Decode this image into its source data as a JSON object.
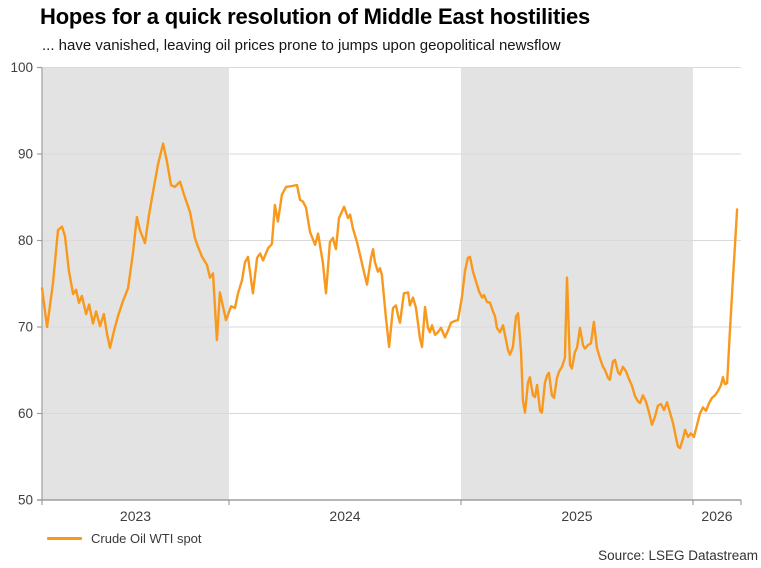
{
  "header": {
    "title": "Hopes for a quick resolution of Middle East hostilities",
    "subtitle": "... have vanished, leaving oil prices prone to jumps upon geopolitical newsflow"
  },
  "legend": {
    "label": "Crude Oil WTI spot"
  },
  "source": {
    "text": "Source: LSEG Datastream"
  },
  "colors": {
    "line": "#F8991D",
    "band": "#E3E3E3",
    "grid": "#D9D9D9",
    "axis": "#9E9E9E",
    "tick_text": "#3F3F3F"
  },
  "chart_data": {
    "type": "line",
    "title": "Hopes for a quick resolution of Middle East hostilities",
    "subtitle": "... have vanished, leaving oil prices prone to jumps upon geopolitical newsflow",
    "ylabel": "",
    "xlabel": "",
    "ylim": [
      50,
      100
    ],
    "y_ticks": [
      50,
      60,
      70,
      80,
      90,
      100
    ],
    "x_range": [
      2023.194,
      2026.207
    ],
    "grid": true,
    "legend_position": "bottom-left",
    "bands": [
      {
        "from": 2023.194,
        "to": 2024.0,
        "shaded": true,
        "label": "2023"
      },
      {
        "from": 2024.0,
        "to": 2025.0,
        "shaded": false,
        "label": "2024"
      },
      {
        "from": 2025.0,
        "to": 2026.0,
        "shaded": true,
        "label": "2025"
      },
      {
        "from": 2026.0,
        "to": 2026.207,
        "shaded": false,
        "label": "2026"
      }
    ],
    "series": [
      {
        "name": "Crude Oil WTI spot",
        "color": "#F8991D",
        "points": [
          [
            2023.194,
            74.5
          ],
          [
            2023.216,
            70.0
          ],
          [
            2023.241,
            75.0
          ],
          [
            2023.263,
            81.2
          ],
          [
            2023.28,
            81.6
          ],
          [
            2023.293,
            80.5
          ],
          [
            2023.31,
            76.5
          ],
          [
            2023.328,
            73.8
          ],
          [
            2023.341,
            74.3
          ],
          [
            2023.353,
            72.8
          ],
          [
            2023.366,
            73.6
          ],
          [
            2023.384,
            71.5
          ],
          [
            2023.397,
            72.6
          ],
          [
            2023.414,
            70.4
          ],
          [
            2023.427,
            71.8
          ],
          [
            2023.444,
            70.1
          ],
          [
            2023.461,
            71.5
          ],
          [
            2023.474,
            69.2
          ],
          [
            2023.487,
            67.6
          ],
          [
            2023.504,
            69.5
          ],
          [
            2023.522,
            71.3
          ],
          [
            2023.543,
            73.0
          ],
          [
            2023.565,
            74.5
          ],
          [
            2023.586,
            78.5
          ],
          [
            2023.603,
            82.7
          ],
          [
            2023.616,
            81.2
          ],
          [
            2023.638,
            79.7
          ],
          [
            2023.655,
            82.9
          ],
          [
            2023.677,
            86.3
          ],
          [
            2023.694,
            88.8
          ],
          [
            2023.716,
            91.2
          ],
          [
            2023.733,
            89.1
          ],
          [
            2023.75,
            86.4
          ],
          [
            2023.767,
            86.2
          ],
          [
            2023.789,
            86.8
          ],
          [
            2023.81,
            85.0
          ],
          [
            2023.832,
            83.3
          ],
          [
            2023.853,
            80.3
          ],
          [
            2023.866,
            79.3
          ],
          [
            2023.884,
            78.1
          ],
          [
            2023.905,
            77.2
          ],
          [
            2023.918,
            75.7
          ],
          [
            2023.931,
            76.2
          ],
          [
            2023.948,
            68.5
          ],
          [
            2023.961,
            74.0
          ],
          [
            2023.987,
            70.8
          ],
          [
            2024.009,
            72.4
          ],
          [
            2024.026,
            72.2
          ],
          [
            2024.039,
            73.9
          ],
          [
            2024.056,
            75.4
          ],
          [
            2024.069,
            77.5
          ],
          [
            2024.082,
            78.1
          ],
          [
            2024.103,
            73.9
          ],
          [
            2024.121,
            78.0
          ],
          [
            2024.134,
            78.5
          ],
          [
            2024.147,
            77.7
          ],
          [
            2024.168,
            79.1
          ],
          [
            2024.185,
            79.6
          ],
          [
            2024.198,
            84.1
          ],
          [
            2024.211,
            82.2
          ],
          [
            2024.228,
            85.3
          ],
          [
            2024.246,
            86.2
          ],
          [
            2024.272,
            86.3
          ],
          [
            2024.293,
            86.4
          ],
          [
            2024.306,
            84.7
          ],
          [
            2024.319,
            84.5
          ],
          [
            2024.332,
            83.8
          ],
          [
            2024.349,
            81.0
          ],
          [
            2024.371,
            79.5
          ],
          [
            2024.384,
            80.8
          ],
          [
            2024.405,
            77.4
          ],
          [
            2024.418,
            73.9
          ],
          [
            2024.435,
            79.8
          ],
          [
            2024.448,
            80.3
          ],
          [
            2024.461,
            79.0
          ],
          [
            2024.474,
            82.6
          ],
          [
            2024.483,
            83.1
          ],
          [
            2024.496,
            83.9
          ],
          [
            2024.513,
            82.6
          ],
          [
            2024.522,
            83.0
          ],
          [
            2024.534,
            81.4
          ],
          [
            2024.552,
            79.8
          ],
          [
            2024.565,
            78.3
          ],
          [
            2024.578,
            76.8
          ],
          [
            2024.595,
            74.9
          ],
          [
            2024.612,
            78.0
          ],
          [
            2024.621,
            79.0
          ],
          [
            2024.629,
            77.5
          ],
          [
            2024.642,
            76.4
          ],
          [
            2024.651,
            76.8
          ],
          [
            2024.659,
            76.0
          ],
          [
            2024.677,
            71.0
          ],
          [
            2024.69,
            67.7
          ],
          [
            2024.707,
            72.2
          ],
          [
            2024.72,
            72.5
          ],
          [
            2024.728,
            71.4
          ],
          [
            2024.737,
            70.5
          ],
          [
            2024.754,
            73.9
          ],
          [
            2024.772,
            74.0
          ],
          [
            2024.78,
            72.5
          ],
          [
            2024.793,
            73.4
          ],
          [
            2024.806,
            72.2
          ],
          [
            2024.823,
            68.7
          ],
          [
            2024.832,
            67.7
          ],
          [
            2024.845,
            72.3
          ],
          [
            2024.858,
            69.9
          ],
          [
            2024.866,
            69.4
          ],
          [
            2024.875,
            70.2
          ],
          [
            2024.888,
            69.1
          ],
          [
            2024.901,
            69.4
          ],
          [
            2024.914,
            69.9
          ],
          [
            2024.931,
            68.8
          ],
          [
            2024.944,
            69.6
          ],
          [
            2024.957,
            70.5
          ],
          [
            2024.974,
            70.7
          ],
          [
            2024.987,
            70.8
          ],
          [
            2025.004,
            73.4
          ],
          [
            2025.017,
            76.4
          ],
          [
            2025.03,
            78.0
          ],
          [
            2025.039,
            78.1
          ],
          [
            2025.052,
            76.4
          ],
          [
            2025.069,
            74.9
          ],
          [
            2025.078,
            74.1
          ],
          [
            2025.091,
            73.4
          ],
          [
            2025.099,
            73.7
          ],
          [
            2025.112,
            72.9
          ],
          [
            2025.125,
            72.8
          ],
          [
            2025.138,
            71.8
          ],
          [
            2025.147,
            71.2
          ],
          [
            2025.155,
            69.9
          ],
          [
            2025.168,
            69.4
          ],
          [
            2025.181,
            70.2
          ],
          [
            2025.194,
            68.5
          ],
          [
            2025.203,
            67.3
          ],
          [
            2025.211,
            66.8
          ],
          [
            2025.224,
            67.7
          ],
          [
            2025.237,
            71.2
          ],
          [
            2025.246,
            71.6
          ],
          [
            2025.259,
            67.0
          ],
          [
            2025.267,
            61.5
          ],
          [
            2025.276,
            60.1
          ],
          [
            2025.289,
            63.6
          ],
          [
            2025.297,
            64.2
          ],
          [
            2025.31,
            62.1
          ],
          [
            2025.319,
            61.9
          ],
          [
            2025.328,
            63.3
          ],
          [
            2025.341,
            60.3
          ],
          [
            2025.349,
            60.1
          ],
          [
            2025.362,
            63.6
          ],
          [
            2025.371,
            64.4
          ],
          [
            2025.379,
            64.7
          ],
          [
            2025.392,
            62.1
          ],
          [
            2025.401,
            61.8
          ],
          [
            2025.414,
            64.1
          ],
          [
            2025.422,
            64.8
          ],
          [
            2025.435,
            65.4
          ],
          [
            2025.448,
            66.4
          ],
          [
            2025.457,
            75.7
          ],
          [
            2025.47,
            65.6
          ],
          [
            2025.478,
            65.2
          ],
          [
            2025.491,
            67.1
          ],
          [
            2025.5,
            67.6
          ],
          [
            2025.513,
            69.9
          ],
          [
            2025.526,
            67.9
          ],
          [
            2025.534,
            67.5
          ],
          [
            2025.547,
            67.9
          ],
          [
            2025.56,
            68.1
          ],
          [
            2025.573,
            70.6
          ],
          [
            2025.586,
            67.6
          ],
          [
            2025.599,
            66.4
          ],
          [
            2025.612,
            65.4
          ],
          [
            2025.621,
            65.0
          ],
          [
            2025.634,
            64.1
          ],
          [
            2025.642,
            63.9
          ],
          [
            2025.655,
            66.0
          ],
          [
            2025.664,
            66.2
          ],
          [
            2025.677,
            64.8
          ],
          [
            2025.685,
            64.5
          ],
          [
            2025.698,
            65.4
          ],
          [
            2025.711,
            64.9
          ],
          [
            2025.724,
            64.0
          ],
          [
            2025.737,
            63.2
          ],
          [
            2025.75,
            62.0
          ],
          [
            2025.763,
            61.4
          ],
          [
            2025.772,
            61.2
          ],
          [
            2025.784,
            62.1
          ],
          [
            2025.797,
            61.4
          ],
          [
            2025.81,
            60.2
          ],
          [
            2025.823,
            58.7
          ],
          [
            2025.836,
            59.6
          ],
          [
            2025.849,
            60.9
          ],
          [
            2025.862,
            61.1
          ],
          [
            2025.875,
            60.4
          ],
          [
            2025.888,
            61.3
          ],
          [
            2025.901,
            60.1
          ],
          [
            2025.914,
            58.9
          ],
          [
            2025.927,
            57.2
          ],
          [
            2025.935,
            56.2
          ],
          [
            2025.944,
            56.0
          ],
          [
            2025.957,
            57.1
          ],
          [
            2025.966,
            58.1
          ],
          [
            2025.979,
            57.3
          ],
          [
            2025.991,
            57.7
          ],
          [
            2026.004,
            57.3
          ],
          [
            2026.017,
            58.6
          ],
          [
            2026.03,
            60.0
          ],
          [
            2026.043,
            60.7
          ],
          [
            2026.056,
            60.3
          ],
          [
            2026.069,
            61.2
          ],
          [
            2026.082,
            61.8
          ],
          [
            2026.095,
            62.1
          ],
          [
            2026.108,
            62.6
          ],
          [
            2026.121,
            63.3
          ],
          [
            2026.129,
            64.2
          ],
          [
            2026.138,
            63.4
          ],
          [
            2026.147,
            63.5
          ],
          [
            2026.159,
            69.5
          ],
          [
            2026.172,
            75.5
          ],
          [
            2026.181,
            79.5
          ],
          [
            2026.19,
            83.6
          ]
        ]
      }
    ]
  }
}
